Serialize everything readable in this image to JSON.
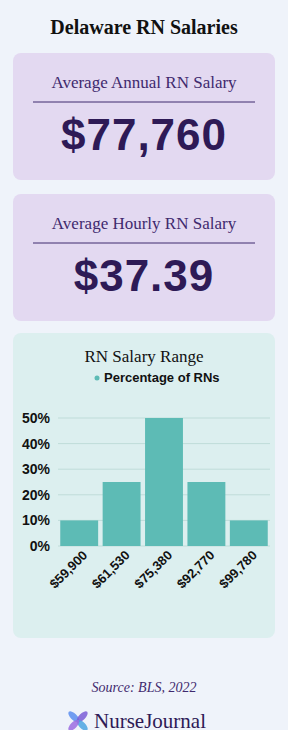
{
  "header": {
    "title": "Delaware RN Salaries"
  },
  "cards": [
    {
      "label": "Average Annual RN Salary",
      "value": "$77,760"
    },
    {
      "label": "Average Hourly RN Salary",
      "value": "$37.39"
    }
  ],
  "chart_data": {
    "type": "bar",
    "title": "RN Salary Range",
    "categories": [
      "$59,900",
      "$61,530",
      "$75,380",
      "$92,770",
      "$99,780"
    ],
    "series": [
      {
        "name": "Percentage of RNs",
        "color": "#5dbbb5",
        "values": [
          10,
          25,
          50,
          25,
          10
        ]
      }
    ],
    "ylim": [
      0,
      50
    ],
    "yticks": [
      {
        "value": 0,
        "label": "0%"
      },
      {
        "value": 10,
        "label": "10%"
      },
      {
        "value": 20,
        "label": "20%"
      },
      {
        "value": 30,
        "label": "30%"
      },
      {
        "value": 40,
        "label": "40%"
      },
      {
        "value": 50,
        "label": "50%"
      }
    ],
    "grid": true,
    "legend": "top"
  },
  "footer": {
    "source": "Source: BLS, 2022",
    "brand": "NurseJournal"
  }
}
